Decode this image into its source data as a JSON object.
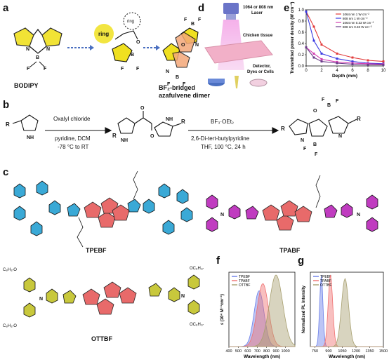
{
  "panels": {
    "a": "a",
    "b": "b",
    "c": "c",
    "d": "d",
    "e": "e",
    "f": "f",
    "g": "g"
  },
  "panel_a": {
    "bodipy": "BODIPY",
    "ring1": "ring",
    "ring2": "ring",
    "dimer_line1": "BF₂-bridged",
    "dimer_line2": "azafulvene dimer"
  },
  "panel_d": {
    "laser_line1": "1064 or 808 nm",
    "laser_line2": "Laser",
    "tissue": "Chicken tissue",
    "detector_line1": "Detector,",
    "detector_line2": "Dyes or Cells"
  },
  "panel_b": {
    "step1_top": "Oxalyl chloride",
    "step1_mid": "pyridine, DCM",
    "step1_bot": "-78 °C to RT",
    "step2_top": "BF₃·OEt₂",
    "step2_mid": "2,6-Di-tert-butylpyridine",
    "step2_bot": "THF, 100 °C, 24 h"
  },
  "panel_c": {
    "m1": "TPEBF",
    "m2": "TPABF",
    "m3": "OTTBF",
    "oc8_a": "OC₈H₁₇",
    "oc8_b": "OC₈H₁₇",
    "oc8_c": "C₈H₁₇O",
    "oc8_d": "C₈H₁₇O"
  },
  "colors": {
    "tpe": "#3aa9d6",
    "tpa": "#c03cc0",
    "core": "#e65a5a",
    "ottbf": "#c8c83c",
    "pyrrole": "#f0e020"
  },
  "chart_data": [
    {
      "type": "line",
      "panel": "e",
      "ylabel": "Transmitted power density (W cm⁻²)",
      "xlabel": "Depth (mm)",
      "xlim": [
        0,
        10
      ],
      "ylim": [
        0,
        1.0
      ],
      "xticks": [
        0,
        2,
        4,
        6,
        8,
        10
      ],
      "yticks": [
        0,
        0.2,
        0.4,
        0.6,
        0.8,
        1.0
      ],
      "x": [
        0,
        1,
        2,
        4,
        6,
        8,
        10
      ],
      "series": [
        {
          "name": "1064 nm 1 W cm⁻²",
          "color": "#e23b3b",
          "values": [
            0.97,
            0.7,
            0.38,
            0.22,
            0.15,
            0.1,
            0.08
          ]
        },
        {
          "name": "808 nm 1 W cm⁻²",
          "color": "#3b3be2",
          "values": [
            0.97,
            0.45,
            0.22,
            0.13,
            0.08,
            0.05,
            0.04
          ]
        },
        {
          "name": "1064 nm 0.33 W cm⁻²",
          "color": "#d23bb0",
          "values": [
            0.33,
            0.22,
            0.12,
            0.07,
            0.05,
            0.04,
            0.03
          ]
        },
        {
          "name": "808 nm 0.33 W cm⁻²",
          "color": "#6a3b8a",
          "values": [
            0.33,
            0.15,
            0.08,
            0.05,
            0.03,
            0.02,
            0.02
          ]
        }
      ]
    },
    {
      "type": "area",
      "panel": "f",
      "ylabel": "ε (10⁴ M⁻¹cm⁻¹)",
      "xlabel": "Wavelength (nm)",
      "xlim": [
        400,
        1100
      ],
      "xticks": [
        400,
        500,
        600,
        700,
        800,
        900,
        1000
      ],
      "series": [
        {
          "name": "TPEBF",
          "color": "#6a7ee8",
          "peak": 720,
          "width": 75,
          "height": 0.78
        },
        {
          "name": "TPABF",
          "color": "#f07070",
          "peak": 760,
          "width": 85,
          "height": 0.88
        },
        {
          "name": "OTTBF",
          "color": "#a8a070",
          "peak": 900,
          "width": 100,
          "height": 1.0
        }
      ]
    },
    {
      "type": "area",
      "panel": "g",
      "ylabel": "Normalized PL Intensity",
      "xlabel": "Wavelength (nm)",
      "xlim": [
        700,
        1500
      ],
      "xticks": [
        750,
        900,
        1050,
        1200,
        1350,
        1500
      ],
      "series": [
        {
          "name": "TPEBF",
          "color": "#6a7ee8",
          "peak": 820,
          "width": 25,
          "height": 1.0
        },
        {
          "name": "TPABF",
          "color": "#f07070",
          "peak": 920,
          "width": 35,
          "height": 1.0
        },
        {
          "name": "OTTBF",
          "color": "#a8a070",
          "peak": 1080,
          "width": 55,
          "height": 0.95
        }
      ]
    }
  ]
}
